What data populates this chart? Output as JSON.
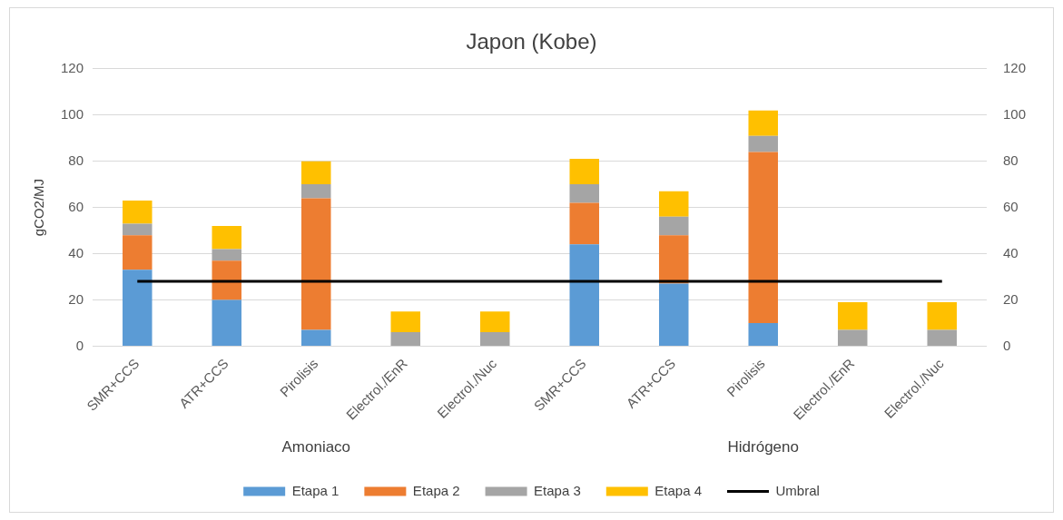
{
  "chart_data": {
    "type": "bar",
    "title": "Japon (Kobe)",
    "ylabel": "gCO2/MJ",
    "categories": [
      "SMR+CCS",
      "ATR+CCS",
      "Pirolisis",
      "Electrol./EnR",
      "Electrol./Nuc",
      "SMR+CCS",
      "ATR+CCS",
      "Pirolisis",
      "Electrol./EnR",
      "Electrol./Nuc"
    ],
    "annotations": [
      "Amoniaco",
      "Hidrógeno"
    ],
    "stacked": true,
    "series": [
      {
        "name": "Etapa 1",
        "color": "#5b9bd5",
        "values": [
          33,
          20,
          7,
          0,
          0,
          44,
          27,
          10,
          0,
          0
        ]
      },
      {
        "name": "Etapa 2",
        "color": "#ed7d31",
        "values": [
          15,
          17,
          57,
          0,
          0,
          18,
          21,
          74,
          0,
          0
        ]
      },
      {
        "name": "Etapa 3",
        "color": "#a5a5a5",
        "values": [
          5,
          5,
          6,
          6,
          6,
          8,
          8,
          7,
          7,
          7
        ]
      },
      {
        "name": "Etapa 4",
        "color": "#ffc000",
        "values": [
          10,
          10,
          10,
          9,
          9,
          11,
          11,
          11,
          12,
          12
        ]
      },
      {
        "name": "Umbral",
        "color": "#000000",
        "type": "line",
        "values": [
          28,
          28,
          28,
          28,
          28,
          28,
          28,
          28,
          28,
          28
        ]
      }
    ],
    "ylim": [
      0,
      120
    ],
    "yticks": [
      0,
      20,
      40,
      60,
      80,
      100,
      120
    ],
    "y2lim": [
      0,
      120
    ],
    "y2ticks": [
      0,
      20,
      40,
      60,
      80,
      100,
      120
    ],
    "grid": "y",
    "legend": "bottom",
    "marker": "none",
    "line_style": "solid"
  }
}
